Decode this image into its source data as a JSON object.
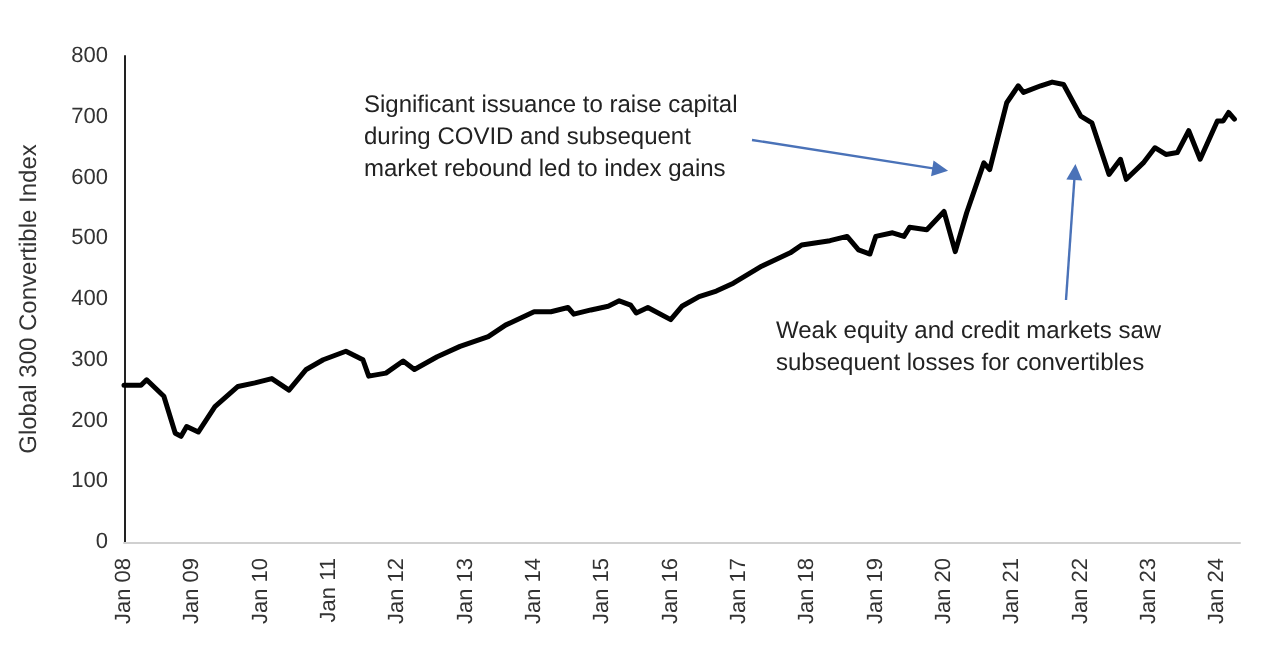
{
  "chart_data": {
    "type": "line",
    "ylabel": "Global 300 Convertible Index",
    "x": [
      "2008-01",
      "2008-04",
      "2008-05",
      "2008-08",
      "2008-10",
      "2008-11",
      "2008-12",
      "2009-02",
      "2009-05",
      "2009-09",
      "2009-12",
      "2010-03",
      "2010-06",
      "2010-09",
      "2010-12",
      "2011-04",
      "2011-07",
      "2011-08",
      "2011-11",
      "2012-02",
      "2012-04",
      "2012-08",
      "2012-12",
      "2013-05",
      "2013-08",
      "2014-01",
      "2014-04",
      "2014-07",
      "2014-08",
      "2014-11",
      "2015-02",
      "2015-04",
      "2015-06",
      "2015-07",
      "2015-09",
      "2016-01",
      "2016-03",
      "2016-06",
      "2016-09",
      "2016-12",
      "2017-05",
      "2017-10",
      "2017-12",
      "2018-05",
      "2018-08",
      "2018-10",
      "2018-12",
      "2019-01",
      "2019-04",
      "2019-06",
      "2019-07",
      "2019-10",
      "2020-01",
      "2020-03",
      "2020-05",
      "2020-08",
      "2020-09",
      "2020-12",
      "2021-02",
      "2021-03",
      "2021-06",
      "2021-08",
      "2021-10",
      "2022-01",
      "2022-03",
      "2022-06",
      "2022-08",
      "2022-09",
      "2022-12",
      "2023-02",
      "2023-04",
      "2023-06",
      "2023-08",
      "2023-10",
      "2024-01",
      "2024-02",
      "2024-03",
      "2024-04"
    ],
    "series": [
      {
        "color": "#000000",
        "values": [
          258,
          258,
          267,
          240,
          179,
          174,
          190,
          181,
          223,
          256,
          262,
          269,
          250,
          284,
          300,
          314,
          300,
          273,
          278,
          298,
          284,
          305,
          322,
          338,
          357,
          379,
          379,
          386,
          375,
          382,
          388,
          397,
          390,
          377,
          386,
          366,
          388,
          404,
          413,
          426,
          454,
          476,
          489,
          496,
          503,
          481,
          474,
          503,
          509,
          503,
          518,
          514,
          544,
          478,
          542,
          624,
          613,
          723,
          751,
          740,
          751,
          757,
          753,
          701,
          690,
          605,
          630,
          597,
          624,
          649,
          638,
          641,
          677,
          630,
          693,
          693,
          707,
          696
        ]
      }
    ],
    "xlim": [
      "2008-01",
      "2024-05"
    ],
    "xticks": [
      {
        "value": "2008-01",
        "label": "Jan 08"
      },
      {
        "value": "2009-01",
        "label": "Jan 09"
      },
      {
        "value": "2010-01",
        "label": "Jan 10"
      },
      {
        "value": "2011-01",
        "label": "Jan 11"
      },
      {
        "value": "2012-01",
        "label": "Jan 12"
      },
      {
        "value": "2013-01",
        "label": "Jan 13"
      },
      {
        "value": "2014-01",
        "label": "Jan 14"
      },
      {
        "value": "2015-01",
        "label": "Jan 15"
      },
      {
        "value": "2016-01",
        "label": "Jan 16"
      },
      {
        "value": "2017-01",
        "label": "Jan 17"
      },
      {
        "value": "2018-01",
        "label": "Jan 18"
      },
      {
        "value": "2019-01",
        "label": "Jan 19"
      },
      {
        "value": "2020-01",
        "label": "Jan 20"
      },
      {
        "value": "2021-01",
        "label": "Jan 21"
      },
      {
        "value": "2022-01",
        "label": "Jan 22"
      },
      {
        "value": "2023-01",
        "label": "Jan 23"
      },
      {
        "value": "2024-01",
        "label": "Jan 24"
      }
    ],
    "ylim": [
      0,
      800
    ],
    "yticks": [
      0,
      100,
      200,
      300,
      400,
      500,
      600,
      700,
      800
    ],
    "grid": false,
    "marker": "none",
    "line_style": "solid",
    "annotations": [
      "Significant issuance to raise capital during COVID and subsequent market rebound led to index gains",
      "Weak equity and credit markets saw subsequent losses for convertibles"
    ]
  }
}
